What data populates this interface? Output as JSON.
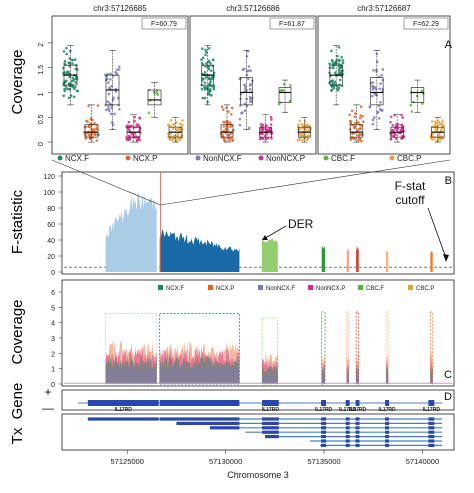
{
  "chart_data": [
    {
      "panel": "A",
      "type": "box",
      "ylabel": "Coverage",
      "ylim": [
        -0.2,
        2.3
      ],
      "yticks": [
        0,
        0.5,
        1,
        1.5,
        2
      ],
      "subplots": [
        {
          "title": "chr3:57126685",
          "stat": "F=60.79",
          "groups": [
            {
              "median": 1.35,
              "q1": 1.15,
              "q3": 1.55,
              "lo": 0.75,
              "hi": 1.95
            },
            {
              "median": 0.2,
              "q1": 0.1,
              "q3": 0.35,
              "lo": 0.0,
              "hi": 0.75
            },
            {
              "median": 1.05,
              "q1": 0.75,
              "q3": 1.35,
              "lo": 0.25,
              "hi": 1.85
            },
            {
              "median": 0.2,
              "q1": 0.1,
              "q3": 0.3,
              "lo": 0.0,
              "hi": 0.55
            },
            {
              "median": 0.85,
              "q1": 0.75,
              "q3": 1.05,
              "lo": 0.5,
              "hi": 1.2
            },
            {
              "median": 0.2,
              "q1": 0.1,
              "q3": 0.3,
              "lo": 0.0,
              "hi": 0.5
            }
          ]
        },
        {
          "title": "chr3:57126686",
          "stat": "F=61.87",
          "groups": [
            {
              "median": 1.35,
              "q1": 1.15,
              "q3": 1.55,
              "lo": 0.75,
              "hi": 1.95
            },
            {
              "median": 0.2,
              "q1": 0.1,
              "q3": 0.35,
              "lo": 0.0,
              "hi": 0.75
            },
            {
              "median": 1.0,
              "q1": 0.75,
              "q3": 1.3,
              "lo": 0.25,
              "hi": 1.85
            },
            {
              "median": 0.2,
              "q1": 0.1,
              "q3": 0.3,
              "lo": 0.0,
              "hi": 0.55
            },
            {
              "median": 1.0,
              "q1": 0.8,
              "q3": 1.1,
              "lo": 0.6,
              "hi": 1.25
            },
            {
              "median": 0.2,
              "q1": 0.1,
              "q3": 0.3,
              "lo": 0.0,
              "hi": 0.5
            }
          ]
        },
        {
          "title": "chr3:57126687",
          "stat": "F=62.29",
          "groups": [
            {
              "median": 1.35,
              "q1": 1.15,
              "q3": 1.55,
              "lo": 0.75,
              "hi": 1.95
            },
            {
              "median": 0.2,
              "q1": 0.1,
              "q3": 0.35,
              "lo": 0.0,
              "hi": 0.75
            },
            {
              "median": 1.0,
              "q1": 0.75,
              "q3": 1.3,
              "lo": 0.25,
              "hi": 1.85
            },
            {
              "median": 0.2,
              "q1": 0.1,
              "q3": 0.3,
              "lo": 0.0,
              "hi": 0.55
            },
            {
              "median": 1.0,
              "q1": 0.8,
              "q3": 1.1,
              "lo": 0.6,
              "hi": 1.25
            },
            {
              "median": 0.2,
              "q1": 0.1,
              "q3": 0.3,
              "lo": 0.0,
              "hi": 0.5
            }
          ]
        }
      ],
      "legends": [
        [
          {
            "name": "NCX.F",
            "color": "#1b8a64"
          },
          {
            "name": "NCX.P",
            "color": "#e0662a"
          }
        ],
        [
          {
            "name": "NonNCX.F",
            "color": "#7b7bb8"
          },
          {
            "name": "NonNCX.P",
            "color": "#d62f8a"
          }
        ],
        [
          {
            "name": "CBC.F",
            "color": "#5fb33a"
          },
          {
            "name": "CBC.P",
            "color": "#e8a33a"
          }
        ]
      ]
    },
    {
      "panel": "B",
      "type": "area",
      "ylabel": "F-statistic",
      "ylim": [
        0,
        120
      ],
      "yticks": [
        0,
        20,
        40,
        60,
        80,
        100,
        120
      ],
      "xlim": [
        57122500,
        57141500
      ],
      "regions": [
        {
          "x0": 57123900,
          "x1": 57126500,
          "level": 100,
          "color": "#a9cde6",
          "shape": "ramp"
        },
        {
          "x0": 57126650,
          "x1": 57130700,
          "level": 62,
          "color": "#1a6aa8",
          "shape": "ramp"
        },
        {
          "x0": 57131850,
          "x1": 57132650,
          "level": 43,
          "color": "#93cf6e",
          "shape": "flat"
        },
        {
          "x0": 57134880,
          "x1": 57135050,
          "level": 33,
          "color": "#2c9a3c",
          "shape": "flat"
        },
        {
          "x0": 57136150,
          "x1": 57136260,
          "level": 30,
          "color": "#f2a08a",
          "shape": "flat"
        },
        {
          "x0": 57136630,
          "x1": 57136760,
          "level": 32,
          "color": "#d23b2e",
          "shape": "flat"
        },
        {
          "x0": 57138150,
          "x1": 57138260,
          "level": 28,
          "color": "#f3b57a",
          "shape": "flat"
        },
        {
          "x0": 57140400,
          "x1": 57140520,
          "level": 27,
          "color": "#ee7a2a",
          "shape": "flat"
        }
      ],
      "marker_x": 57126686,
      "annotations": [
        "DER",
        "F-stat cutoff"
      ]
    },
    {
      "panel": "C",
      "type": "area",
      "ylabel": "Coverage",
      "ylim": [
        0,
        6
      ],
      "yticks": [
        0,
        1,
        2,
        3,
        4,
        5,
        6
      ],
      "xlim": [
        57122500,
        57141500
      ],
      "legend": [
        {
          "name": "NCX.F",
          "color": "#1b8a64"
        },
        {
          "name": "NCX.P",
          "color": "#e0662a"
        },
        {
          "name": "NonNCX.F",
          "color": "#7b7bb8"
        },
        {
          "name": "NonNCX.P",
          "color": "#d62f8a"
        },
        {
          "name": "CBC.F",
          "color": "#5fb33a"
        },
        {
          "name": "CBC.P",
          "color": "#e8a33a"
        }
      ]
    },
    {
      "panel": "D",
      "type": "gene-track",
      "xlabel": "Chromosome 3",
      "xlim": [
        57122500,
        57141500
      ],
      "xticks": [
        57125000,
        57130000,
        57135000,
        57140000
      ],
      "gene_label": "Gene",
      "tx_label": "Tx",
      "strand_plus": "+",
      "strand_minus": "—",
      "exons": [
        {
          "x0": 57123000,
          "x1": 57126600,
          "label": "IL17RD"
        },
        {
          "x0": 57126650,
          "x1": 57130700,
          "label": ""
        },
        {
          "x0": 57131850,
          "x1": 57132700,
          "label": "IL17RD"
        },
        {
          "x0": 57134850,
          "x1": 57135100,
          "label": "IL17RD"
        },
        {
          "x0": 57136100,
          "x1": 57136300,
          "label": "IL17RD"
        },
        {
          "x0": 57136600,
          "x1": 57136800,
          "label": "IL17RD"
        },
        {
          "x0": 57138100,
          "x1": 57138300,
          "label": "IL17RD"
        },
        {
          "x0": 57140300,
          "x1": 57140600,
          "label": "IL17RD"
        }
      ]
    }
  ]
}
